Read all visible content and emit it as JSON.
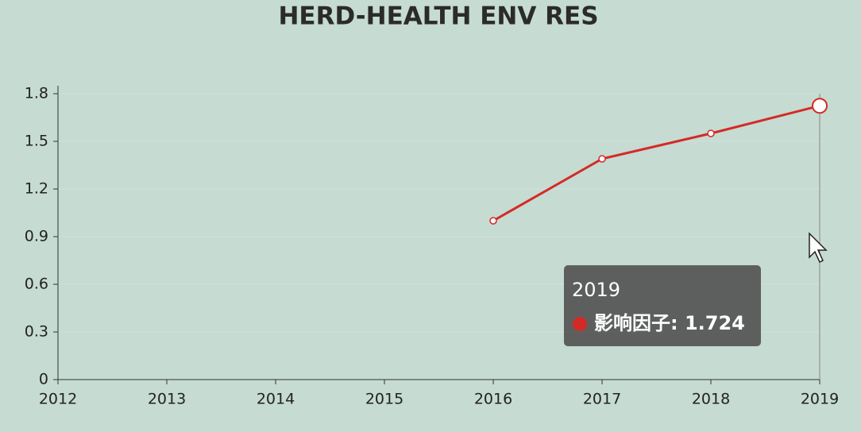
{
  "chart_data": {
    "type": "line",
    "title": "HERD-HEALTH ENV RES",
    "categories": [
      "2012",
      "2013",
      "2014",
      "2015",
      "2016",
      "2017",
      "2018",
      "2019"
    ],
    "series": [
      {
        "name": "影响因子",
        "color": "#d42a27",
        "values": [
          null,
          null,
          null,
          null,
          1.0,
          1.39,
          1.55,
          1.724
        ]
      }
    ],
    "ylim": [
      0,
      1.8
    ],
    "yticks": [
      0,
      0.3,
      0.6,
      0.9,
      1.2,
      1.5,
      1.8
    ],
    "grid": true,
    "tooltip": {
      "title": "2019",
      "text": "影响因子: 1.724"
    }
  }
}
